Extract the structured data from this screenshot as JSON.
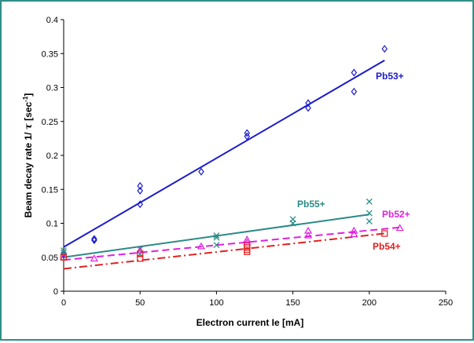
{
  "chart_data": {
    "type": "scatter",
    "title": "",
    "xlabel": "Electron current Ie [mA]",
    "ylabel_parts": {
      "pre": "Beam decay rate 1/ ",
      "tau": "τ",
      "mid": " [sec",
      "sup": "-1",
      "post": "]"
    },
    "xlim": [
      0,
      250
    ],
    "ylim": [
      0,
      0.4
    ],
    "x_ticks": [
      "0",
      "50",
      "100",
      "150",
      "200",
      "250"
    ],
    "y_ticks": [
      "0",
      "0.05",
      "0.1",
      "0.15",
      "0.2",
      "0.25",
      "0.3",
      "0.35",
      "0.4"
    ],
    "grid": false,
    "series": [
      {
        "name": "Pb53+",
        "color": "#1a1acc",
        "marker": "diamond",
        "points": [
          [
            0,
            0.055
          ],
          [
            20,
            0.075
          ],
          [
            20,
            0.077
          ],
          [
            50,
            0.128
          ],
          [
            50,
            0.148
          ],
          [
            50,
            0.155
          ],
          [
            90,
            0.176
          ],
          [
            120,
            0.228
          ],
          [
            120,
            0.233
          ],
          [
            160,
            0.27
          ],
          [
            160,
            0.277
          ],
          [
            190,
            0.294
          ],
          [
            190,
            0.322
          ],
          [
            210,
            0.357
          ]
        ],
        "fit": [
          [
            0,
            0.065
          ],
          [
            210,
            0.34
          ]
        ],
        "fit_style": "solid"
      },
      {
        "name": "Pb55+",
        "color": "#2a8a86",
        "marker": "x",
        "points": [
          [
            0,
            0.053
          ],
          [
            0,
            0.057
          ],
          [
            0,
            0.06
          ],
          [
            50,
            0.055
          ],
          [
            50,
            0.062
          ],
          [
            100,
            0.068
          ],
          [
            100,
            0.079
          ],
          [
            100,
            0.082
          ],
          [
            150,
            0.1
          ],
          [
            150,
            0.106
          ],
          [
            200,
            0.103
          ],
          [
            200,
            0.115
          ],
          [
            200,
            0.132
          ]
        ],
        "fit": [
          [
            0,
            0.05
          ],
          [
            200,
            0.113
          ]
        ],
        "fit_style": "solid"
      },
      {
        "name": "Pb52+",
        "color": "#e020e0",
        "marker": "triangle",
        "points": [
          [
            0,
            0.05
          ],
          [
            20,
            0.048
          ],
          [
            50,
            0.06
          ],
          [
            90,
            0.066
          ],
          [
            120,
            0.072
          ],
          [
            120,
            0.076
          ],
          [
            160,
            0.082
          ],
          [
            160,
            0.089
          ],
          [
            190,
            0.084
          ],
          [
            190,
            0.089
          ],
          [
            220,
            0.093
          ]
        ],
        "fit": [
          [
            0,
            0.046
          ],
          [
            220,
            0.094
          ]
        ],
        "fit_style": "dash"
      },
      {
        "name": "Pb54+",
        "color": "#e02020",
        "marker": "square",
        "points": [
          [
            0,
            0.05
          ],
          [
            50,
            0.048
          ],
          [
            50,
            0.055
          ],
          [
            120,
            0.058
          ],
          [
            120,
            0.061
          ],
          [
            120,
            0.064
          ],
          [
            120,
            0.067
          ],
          [
            210,
            0.085
          ]
        ],
        "fit": [
          [
            0,
            0.033
          ],
          [
            210,
            0.085
          ]
        ],
        "fit_style": "dashdot"
      }
    ]
  }
}
